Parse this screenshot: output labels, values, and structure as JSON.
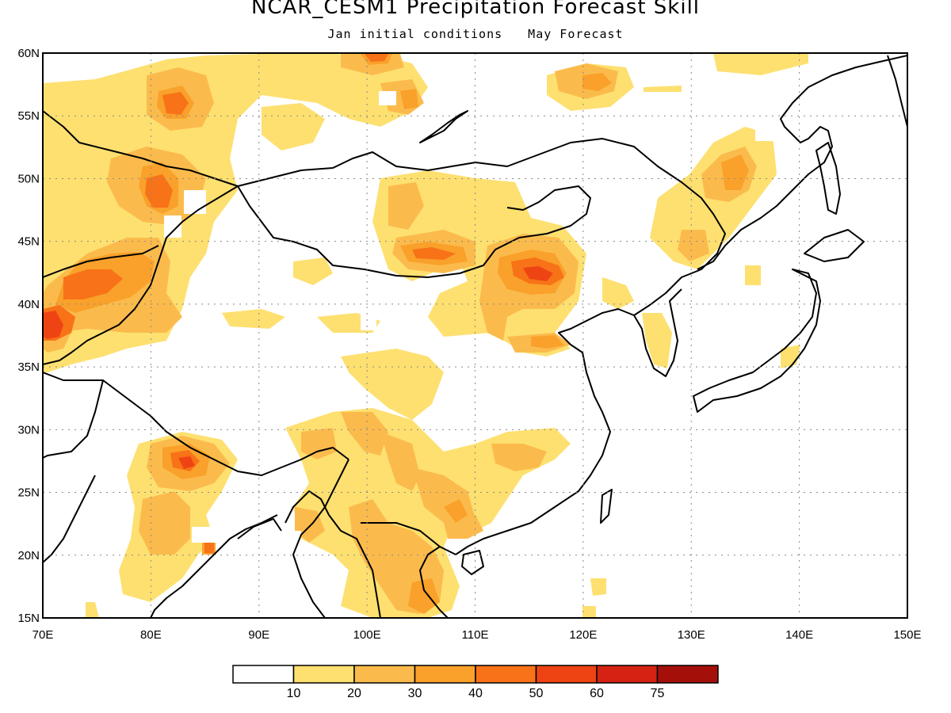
{
  "title": "NCAR_CESM1 Precipitation Forecast Skill",
  "subtitle": [
    "Jan initial conditions",
    "May Forecast"
  ],
  "map": {
    "lon_range": [
      70,
      150
    ],
    "lat_range": [
      15,
      60
    ],
    "lon_labels": [
      "70E",
      "80E",
      "90E",
      "100E",
      "110E",
      "120E",
      "130E",
      "140E",
      "150E"
    ],
    "lat_labels": [
      "15N",
      "20N",
      "25N",
      "30N",
      "35N",
      "40N",
      "45N",
      "50N",
      "55N",
      "60N"
    ],
    "grid": "dotted"
  },
  "colorbar": {
    "colors": [
      "#ffffff",
      "#fde070",
      "#fbbb4c",
      "#f9a12a",
      "#f87218",
      "#ee4414",
      "#d62212",
      "#a50f0a"
    ],
    "labels": [
      "10",
      "20",
      "30",
      "40",
      "50",
      "60",
      "75"
    ]
  },
  "skill_regions": [
    {
      "lon": 81.5,
      "lat": 56,
      "level": 3,
      "rx": 9,
      "ry": 6
    },
    {
      "lon": 82,
      "lat": 49,
      "level": 3,
      "rx": 8,
      "ry": 6
    },
    {
      "lon": 74,
      "lat": 41,
      "level": 4,
      "rx": 9,
      "ry": 5
    },
    {
      "lon": 71,
      "lat": 38,
      "level": 5,
      "rx": 3,
      "ry": 3
    },
    {
      "lon": 103,
      "lat": 44,
      "level": 3,
      "rx": 8,
      "ry": 6
    },
    {
      "lon": 115,
      "lat": 42,
      "level": 4,
      "rx": 9,
      "ry": 5
    },
    {
      "lon": 133,
      "lat": 50,
      "level": 2,
      "rx": 6,
      "ry": 6
    },
    {
      "lon": 83,
      "lat": 27,
      "level": 4,
      "rx": 6,
      "ry": 5
    },
    {
      "lon": 103,
      "lat": 28,
      "level": 2,
      "rx": 7,
      "ry": 6
    },
    {
      "lon": 106,
      "lat": 21,
      "level": 3,
      "rx": 6,
      "ry": 6
    }
  ]
}
